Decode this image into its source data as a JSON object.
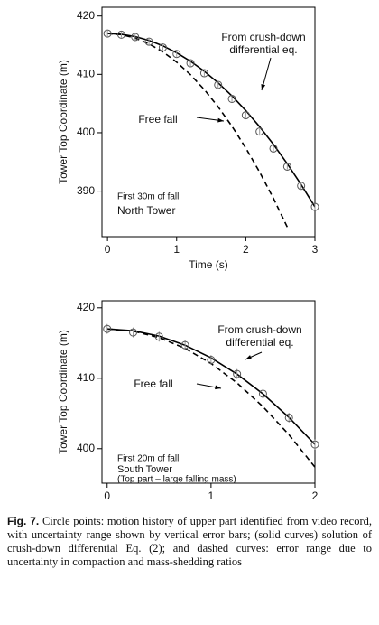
{
  "chart_data": [
    {
      "type": "line",
      "xlabel": "Time (s)",
      "ylabel": "Tower Top Coordinate (m)",
      "x": [
        0,
        0.2,
        0.4,
        0.6,
        0.8,
        1.0,
        1.2,
        1.4,
        1.6,
        1.8,
        2.0,
        2.2,
        2.4,
        2.6,
        2.8,
        3.0
      ],
      "series": [
        {
          "color": "#555555",
          "line_style": "none",
          "marker": "circle",
          "values": [
            417.0,
            416.8,
            416.4,
            415.6,
            414.6,
            413.5,
            411.9,
            410.2,
            408.2,
            405.8,
            403.0,
            400.2,
            397.3,
            394.2,
            390.9,
            387.3
          ],
          "errors": [
            0.5,
            0.5,
            0.5,
            0.5,
            0.5,
            0.5,
            0.5,
            0.5,
            0.5,
            0.5,
            0.5,
            0.5,
            0.5,
            0.5,
            0.5,
            0.5
          ]
        },
        {
          "name": "From crush-down differential eq.",
          "color": "#000000",
          "line_style": "solid",
          "values": [
            417,
            416.87,
            416.47,
            415.81,
            414.89,
            413.7,
            412.25,
            410.53,
            408.55,
            406.31,
            403.8,
            401.03,
            398.0,
            394.69,
            391.13,
            387.3
          ]
        },
        {
          "name": "Free fall",
          "color": "#000000",
          "line_style": "dashed",
          "values": [
            417,
            416.8,
            416.22,
            415.23,
            413.86,
            412.1,
            409.94,
            407.39,
            404.44,
            401.11,
            397.38,
            393.26,
            388.75,
            383.84,
            null,
            null
          ]
        }
      ],
      "xlim": [
        -0.08,
        3
      ],
      "ylim": [
        382.2,
        421.5
      ],
      "xticks": [
        0,
        1,
        2,
        3
      ],
      "yticks": [
        390,
        400,
        410,
        420
      ],
      "annotations": [
        "First 30m of fall",
        "North Tower"
      ]
    },
    {
      "type": "line",
      "xlabel": "Time (s)",
      "ylabel": "Tower Top Coordinate (m)",
      "x": [
        0,
        0.25,
        0.5,
        0.75,
        1.0,
        1.25,
        1.5,
        1.75,
        2.0
      ],
      "series": [
        {
          "color": "#555555",
          "line_style": "none",
          "marker": "circle",
          "values": [
            417.0,
            416.5,
            415.9,
            414.7,
            412.6,
            410.6,
            407.8,
            404.4,
            400.6
          ],
          "errors": [
            0.7,
            0.7,
            0.7,
            0.7,
            0.7,
            0.7,
            0.7,
            0.7,
            0.7
          ]
        },
        {
          "name": "From crush-down differential eq.",
          "color": "#000000",
          "line_style": "solid",
          "values": [
            417,
            416.74,
            415.98,
            414.69,
            412.9,
            410.59,
            407.78,
            404.44,
            400.6
          ]
        },
        {
          "name": "Free fall",
          "color": "#000000",
          "line_style": "dashed",
          "values": [
            417,
            416.69,
            415.77,
            414.24,
            412.1,
            409.34,
            405.96,
            401.98,
            397.38
          ]
        }
      ],
      "xlim": [
        -0.05,
        2
      ],
      "ylim": [
        395.1,
        421
      ],
      "xticks": [
        0,
        1,
        2
      ],
      "yticks": [
        400,
        410,
        420
      ],
      "annotations": [
        "First 20m of fall",
        "South Tower",
        "(Top part – large falling mass)"
      ]
    }
  ],
  "caption": {
    "label": "Fig. 7.",
    "text": "Circle points: motion history of upper part identified from video record, with uncertainty range shown by vertical error bars; (solid curves) solution of crush-down differential Eq. (2); and dashed curves: error range due to uncertainty in compaction and mass-shedding ratios"
  }
}
